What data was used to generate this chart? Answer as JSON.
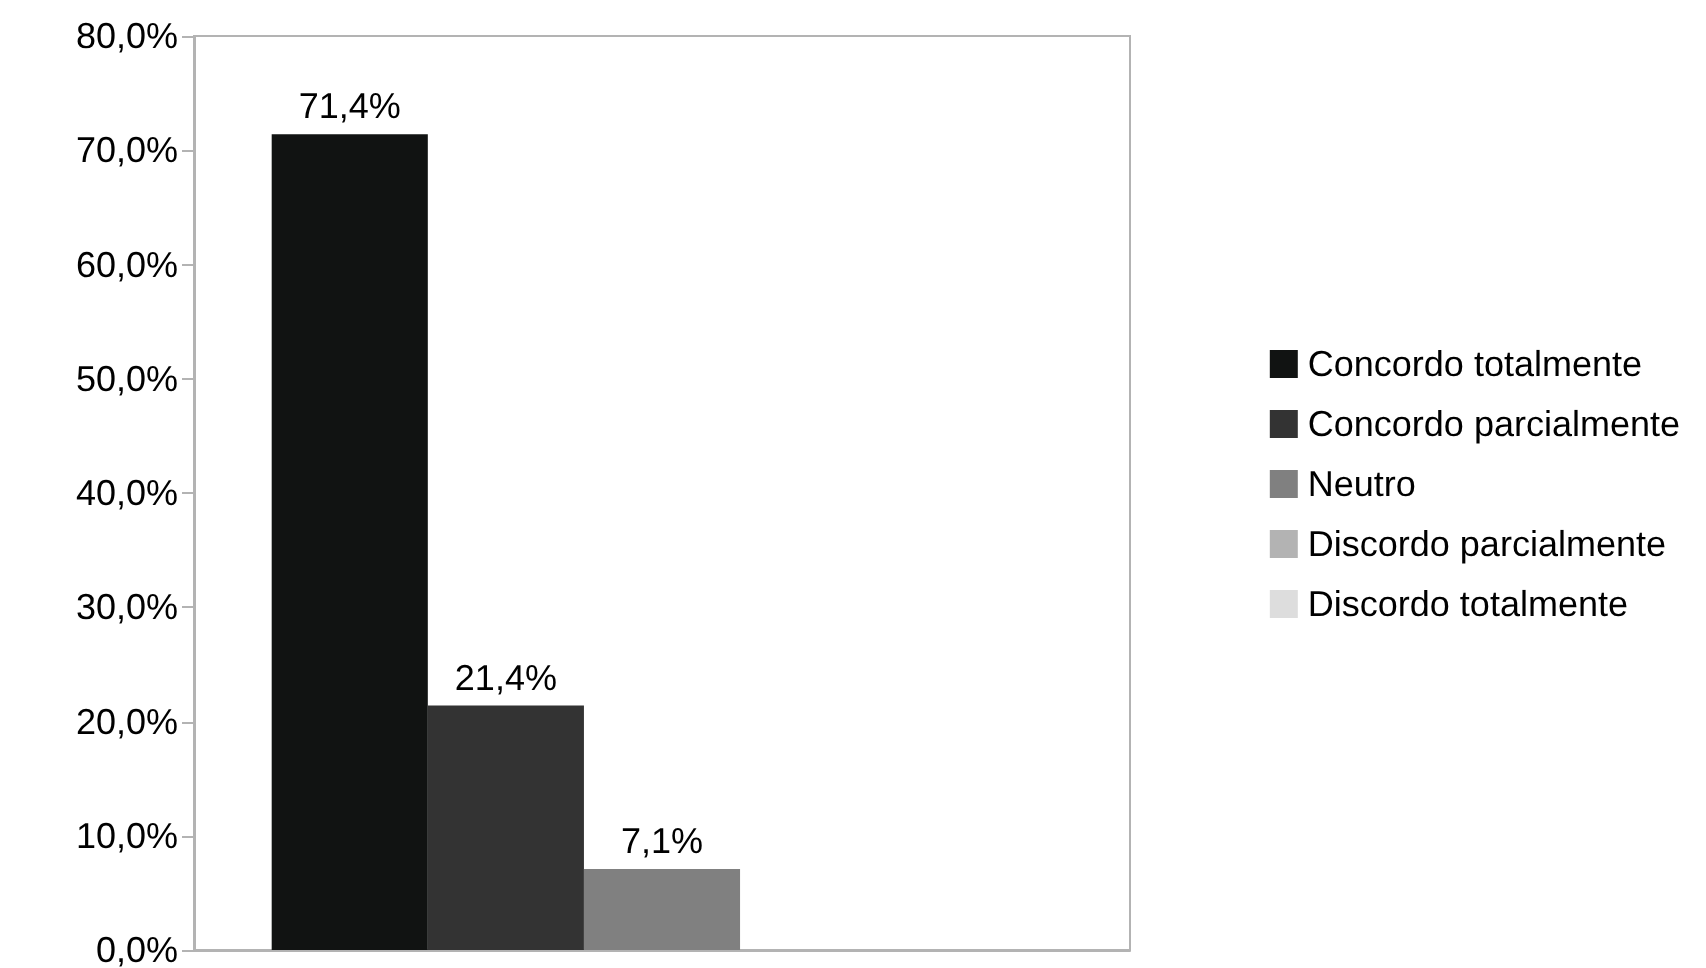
{
  "chart_data": {
    "type": "bar",
    "categories": [
      null
    ],
    "series": [
      {
        "name": "Concordo totalmente",
        "color": "#111312",
        "values": [
          71.4
        ],
        "value_labels": [
          "71,4%"
        ]
      },
      {
        "name": "Concordo parcialmente",
        "color": "#333333",
        "values": [
          21.4
        ],
        "value_labels": [
          "21,4%"
        ]
      },
      {
        "name": "Neutro",
        "color": "#808080",
        "values": [
          7.1
        ],
        "value_labels": [
          "7,1%"
        ]
      },
      {
        "name": "Discordo parcialmente",
        "color": "#b3b3b3",
        "values": [
          0
        ],
        "value_labels": [
          null
        ]
      },
      {
        "name": "Discordo totalmente",
        "color": "#dddddd",
        "values": [
          0
        ],
        "value_labels": [
          null
        ]
      }
    ],
    "ylim": [
      0,
      80
    ],
    "yticks": [
      {
        "value": 0,
        "label": "0,0%"
      },
      {
        "value": 10,
        "label": "10,0%"
      },
      {
        "value": 20,
        "label": "20,0%"
      },
      {
        "value": 30,
        "label": "30,0%"
      },
      {
        "value": 40,
        "label": "40,0%"
      },
      {
        "value": 50,
        "label": "50,0%"
      },
      {
        "value": 60,
        "label": "60,0%"
      },
      {
        "value": 70,
        "label": "70,0%"
      },
      {
        "value": 80,
        "label": "80,0%"
      }
    ],
    "grid": false,
    "legend": "right"
  }
}
